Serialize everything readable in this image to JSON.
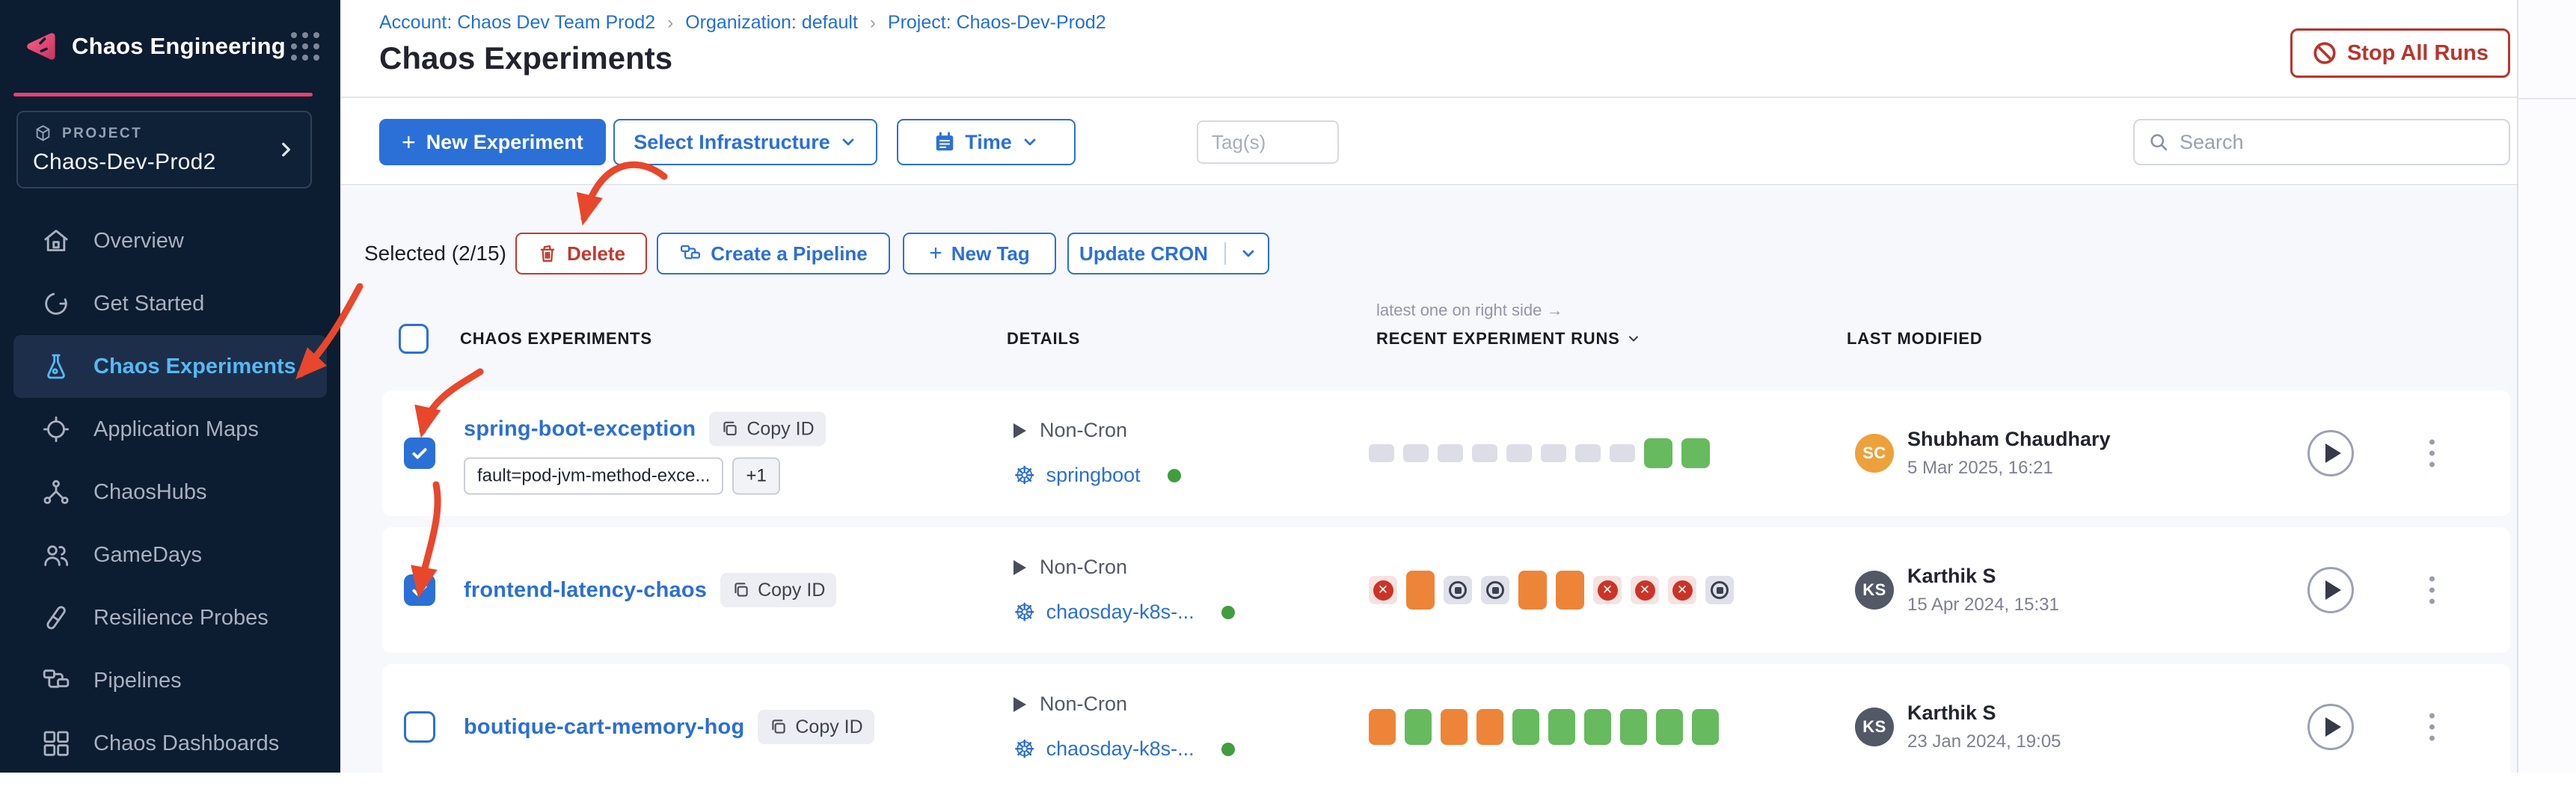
{
  "app": {
    "title": "Chaos Engineering"
  },
  "sidebar": {
    "project_label": "PROJECT",
    "project_name": "Chaos-Dev-Prod2",
    "items": [
      {
        "label": "Overview",
        "icon": "home",
        "active": false
      },
      {
        "label": "Get Started",
        "icon": "progress",
        "active": false
      },
      {
        "label": "Chaos Experiments",
        "icon": "flask",
        "active": true
      },
      {
        "label": "Application Maps",
        "icon": "target",
        "active": false
      },
      {
        "label": "ChaosHubs",
        "icon": "network",
        "active": false
      },
      {
        "label": "GameDays",
        "icon": "people",
        "active": false
      },
      {
        "label": "Resilience Probes",
        "icon": "tube",
        "active": false
      },
      {
        "label": "Pipelines",
        "icon": "pipeline",
        "active": false
      },
      {
        "label": "Chaos Dashboards",
        "icon": "dashboard",
        "active": false
      }
    ]
  },
  "header": {
    "breadcrumb": [
      "Account: Chaos Dev Team Prod2",
      "Organization: default",
      "Project: Chaos-Dev-Prod2"
    ],
    "title": "Chaos Experiments",
    "stop_all_runs": "Stop All Runs"
  },
  "toolbar": {
    "new_experiment": "New Experiment",
    "select_infrastructure": "Select Infrastructure",
    "time": "Time",
    "tags_placeholder": "Tag(s)",
    "search_placeholder": "Search"
  },
  "bulkbar": {
    "selected": "Selected (2/15)",
    "delete": "Delete",
    "create_pipeline": "Create a Pipeline",
    "new_tag": "New Tag",
    "update_cron": "Update CRON"
  },
  "table": {
    "note": "latest one on right side →",
    "columns": [
      "CHAOS EXPERIMENTS",
      "DETAILS",
      "RECENT EXPERIMENT RUNS",
      "LAST MODIFIED"
    ],
    "copy_id_label": "Copy ID",
    "rows": [
      {
        "name": "spring-boot-exception",
        "checked": true,
        "tags": [
          "fault=pod-jvm-method-exce...",
          "+1"
        ],
        "cron": "Non-Cron",
        "infra": "springboot",
        "infra_status_color": "#3f9e3e",
        "runs": [
          "gray-sm",
          "gray-sm",
          "gray-sm",
          "gray-sm",
          "gray-sm",
          "gray-sm",
          "gray-sm",
          "gray-sm",
          "green-md",
          "green-md"
        ],
        "modified_by": "Shubham Chaudhary",
        "modified_initials": "SC",
        "avatar_color": "#eda13b",
        "modified_date": "5 Mar 2025, 16:21"
      },
      {
        "name": "frontend-latency-chaos",
        "checked": true,
        "tags": [],
        "cron": "Non-Cron",
        "infra": "chaosday-k8s-...",
        "infra_status_color": "#3f9e3e",
        "runs": [
          "failed-icon",
          "orange-tall",
          "stopped-icon",
          "stopped-icon",
          "orange-tall",
          "orange-tall",
          "failed-icon",
          "failed-icon",
          "failed-icon",
          "stopped-icon"
        ],
        "modified_by": "Karthik S",
        "modified_initials": "KS",
        "avatar_color": "#525866",
        "modified_date": "15 Apr 2024, 15:31"
      },
      {
        "name": "boutique-cart-memory-hog",
        "checked": false,
        "tags": [],
        "cron": "Non-Cron",
        "infra": "chaosday-k8s-...",
        "infra_status_color": "#3f9e3e",
        "runs": [
          "orange-bar",
          "green-bar",
          "orange-bar",
          "orange-bar",
          "green-bar",
          "green-bar",
          "green-bar",
          "green-bar",
          "green-bar",
          "green-bar"
        ],
        "modified_by": "Karthik S",
        "modified_initials": "KS",
        "avatar_color": "#525866",
        "modified_date": "23 Jan 2024, 19:05"
      }
    ]
  },
  "annotations": {
    "color": "#e8472b",
    "arrows_point_to": [
      "delete-button",
      "sidebar-item-chaos-experiments",
      "row-1-checkbox",
      "row-2-checkbox"
    ]
  }
}
